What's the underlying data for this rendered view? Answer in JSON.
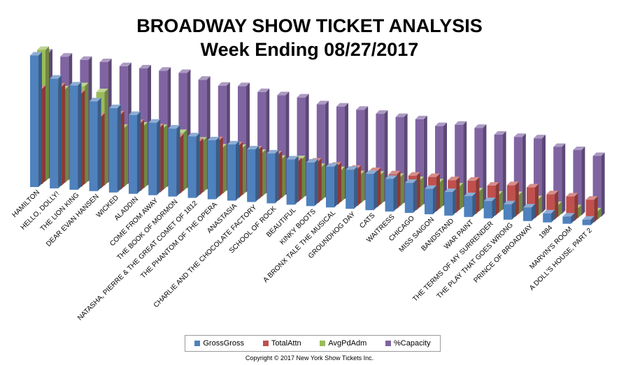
{
  "chart_data": {
    "type": "bar",
    "title": "BROADWAY SHOW TICKET ANALYSIS",
    "subtitle": "Week Ending 08/27/2017",
    "categories": [
      "HAMILTON",
      "HELLO, DOLLY!",
      "THE LION KING",
      "DEAR EVAN HANSEN",
      "WICKED",
      "ALADDIN",
      "COME FROM AWAY",
      "THE BOOK OF MORMON",
      "NATASHA, PIERRE & THE GREAT COMET OF 1812",
      "THE PHANTOM OF THE OPERA",
      "ANASTASIA",
      "CHARLIE AND THE CHOCOLATE FACTORY",
      "SCHOOL OF ROCK",
      "BEAUTIFUL",
      "KINKY BOOTS",
      "A BRONX TALE THE MUSICAL",
      "GROUNDHOG DAY",
      "CATS",
      "WAITRESS",
      "CHICAGO",
      "MISS SAIGON",
      "BANDSTAND",
      "WAR PAINT",
      "THE TERMS OF MY SURRENDER",
      "THE PLAY THAT GOES WRONG",
      "PRINCE OF BROADWAY",
      "1984",
      "MARVIN'S ROOM",
      "A DOLL'S HOUSE, PART 2"
    ],
    "series": [
      {
        "name": "GrossGross",
        "color": "#4f81bd",
        "values": [
          100,
          76,
          70,
          54,
          48,
          42,
          35,
          30,
          23,
          20,
          17,
          13,
          10,
          5,
          3,
          0,
          -2,
          -5,
          -9,
          -12,
          -17,
          -19,
          -22,
          -26,
          -28,
          -30,
          -35,
          -37,
          -39
        ]
      },
      {
        "name": "TotalAttn",
        "color": "#c0504d",
        "values": [
          60,
          64,
          58,
          34,
          38,
          30,
          27,
          17,
          14,
          17,
          13,
          10,
          6,
          0,
          1,
          -2,
          -4,
          -5,
          -7,
          -7,
          -7,
          -9,
          -8,
          -12,
          -10,
          -11,
          -17,
          -18,
          -20
        ]
      },
      {
        "name": "AvgPdAdm",
        "color": "#9bbb59",
        "values": [
          100,
          58,
          63,
          58,
          20,
          24,
          23,
          19,
          12,
          6,
          7,
          3,
          -2,
          -1,
          -8,
          -10,
          -13,
          -12,
          -13,
          -15,
          -16,
          -19,
          -23,
          -25,
          -24,
          -27,
          -32,
          -34,
          -36
        ]
      },
      {
        "name": "%Capacity",
        "color": "#8064a2",
        "values": [
          94,
          91,
          89,
          88,
          85,
          84,
          83,
          82,
          76,
          71,
          72,
          67,
          65,
          64,
          58,
          57,
          55,
          52,
          50,
          49,
          43,
          46,
          44,
          38,
          37,
          37,
          29,
          27,
          22
        ]
      }
    ]
  },
  "copyright": "Copyright © 2017 New York Show Tickets Inc."
}
